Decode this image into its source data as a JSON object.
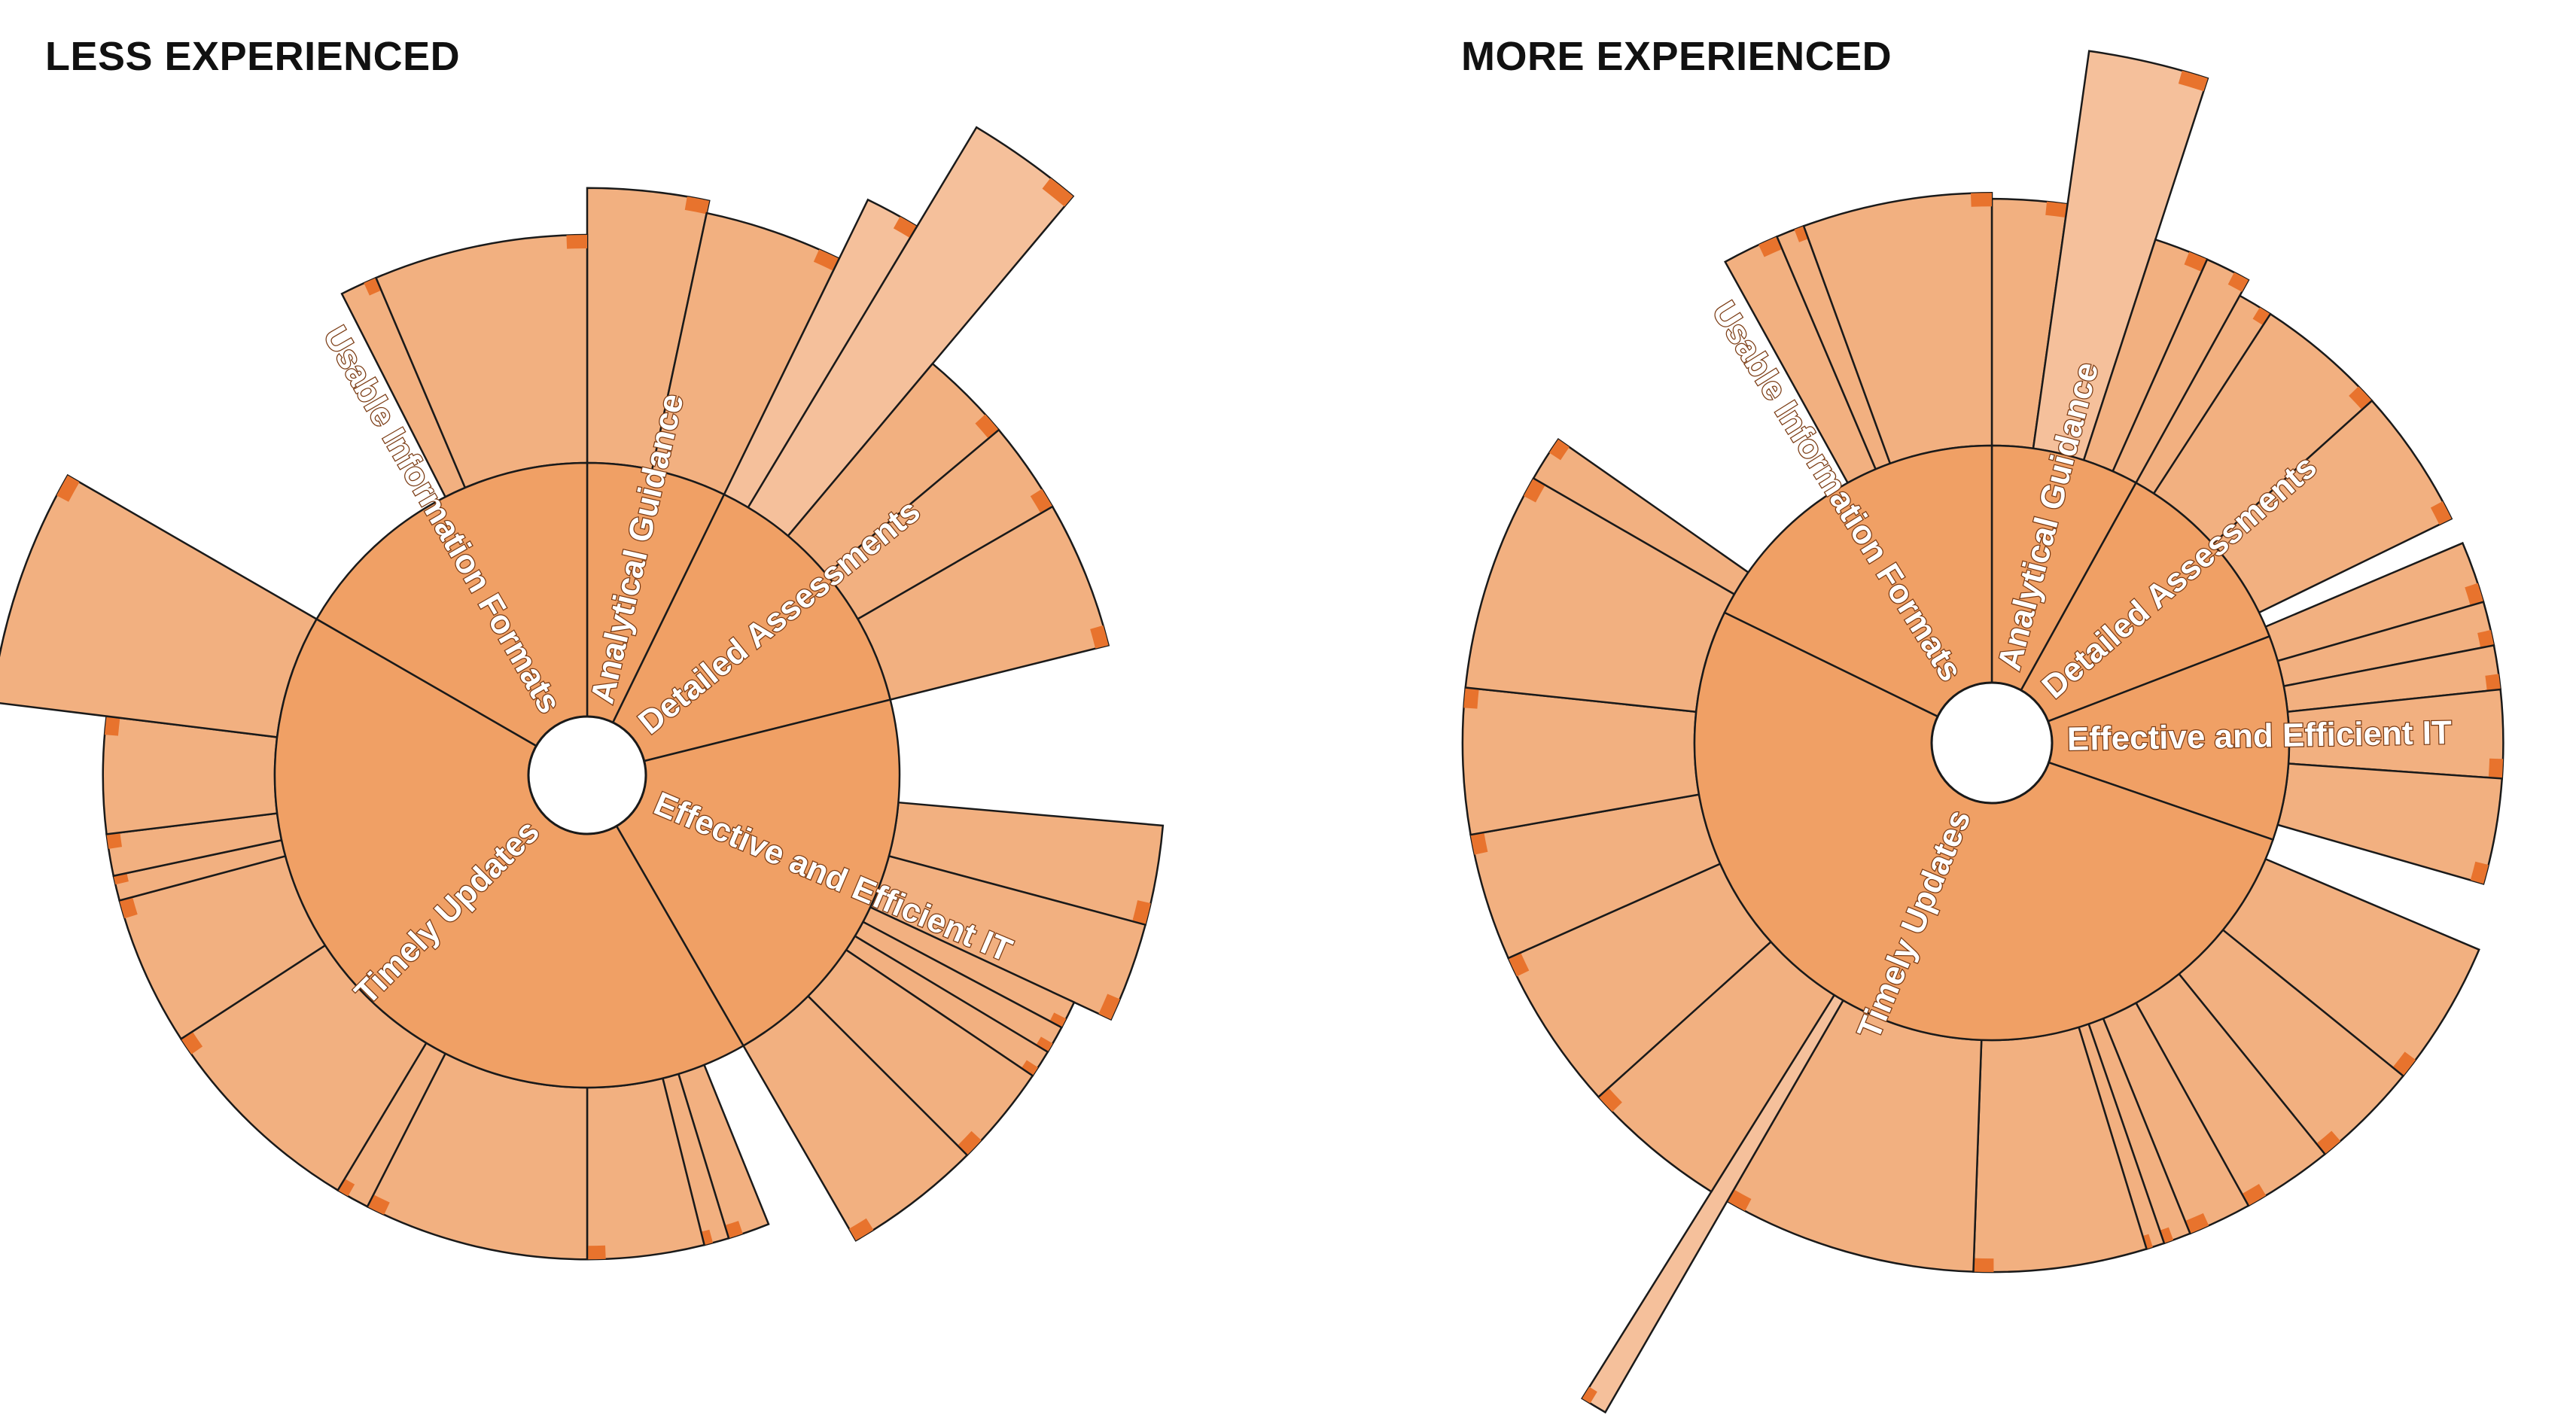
{
  "colors": {
    "inner": "#f0a065",
    "outer": "#f2b080",
    "outer_accent": "#f5c09b",
    "edge": "#1a1a1a",
    "tip": "#e8732d"
  },
  "chart_data": [
    {
      "type": "sunburst",
      "title": "LESS EXPERIENCED",
      "inner_ring": [
        {
          "name": "Analytical Guidance",
          "start": 0,
          "end": 26
        },
        {
          "name": "Detailed Assessments",
          "start": 26,
          "end": 76
        },
        {
          "name": "Effective and Efficient IT",
          "start": 76,
          "end": 150
        },
        {
          "name": "Timely Updates",
          "start": 150,
          "end": 300
        },
        {
          "name": "Usable Information Formats",
          "start": 300,
          "end": 360
        }
      ],
      "outer_ring": [
        {
          "parent": "Analytical Guidance",
          "start": 0,
          "end": 12,
          "level": 1.88
        },
        {
          "parent": "Analytical Guidance",
          "start": 12,
          "end": 26,
          "level": 1.84
        },
        {
          "parent": "Analytical Guidance",
          "start": 26,
          "end": 31,
          "level": 2.05
        },
        {
          "parent": "Detailed Assessments",
          "start": 31,
          "end": 40,
          "level": 2.42
        },
        {
          "parent": "Detailed Assessments",
          "start": 40,
          "end": 50,
          "level": 1.72
        },
        {
          "parent": "Detailed Assessments",
          "start": 50,
          "end": 60,
          "level": 1.72
        },
        {
          "parent": "Detailed Assessments",
          "start": 60,
          "end": 76,
          "level": 1.72
        },
        {
          "parent": "Effective and Efficient IT",
          "start": 95,
          "end": 105,
          "level": 1.85
        },
        {
          "parent": "Effective and Efficient IT",
          "start": 105,
          "end": 115,
          "level": 1.85
        },
        {
          "parent": "Effective and Efficient IT",
          "start": 115,
          "end": 118,
          "level": 1.72
        },
        {
          "parent": "Effective and Efficient IT",
          "start": 118,
          "end": 121,
          "level": 1.72
        },
        {
          "parent": "Effective and Efficient IT",
          "start": 121,
          "end": 124,
          "level": 1.72
        },
        {
          "parent": "Effective and Efficient IT",
          "start": 124,
          "end": 135,
          "level": 1.72
        },
        {
          "parent": "Effective and Efficient IT",
          "start": 135,
          "end": 150,
          "level": 1.72
        },
        {
          "parent": "Timely Updates",
          "start": 158,
          "end": 163,
          "level": 1.55
        },
        {
          "parent": "Timely Updates",
          "start": 163,
          "end": 166,
          "level": 1.55
        },
        {
          "parent": "Timely Updates",
          "start": 166,
          "end": 180,
          "level": 1.55
        },
        {
          "parent": "Timely Updates",
          "start": 180,
          "end": 207,
          "level": 1.55
        },
        {
          "parent": "Timely Updates",
          "start": 207,
          "end": 211,
          "level": 1.55
        },
        {
          "parent": "Timely Updates",
          "start": 211,
          "end": 237,
          "level": 1.55
        },
        {
          "parent": "Timely Updates",
          "start": 237,
          "end": 255,
          "level": 1.55
        },
        {
          "parent": "Timely Updates",
          "start": 255,
          "end": 258,
          "level": 1.55
        },
        {
          "parent": "Timely Updates",
          "start": 258,
          "end": 263,
          "level": 1.55
        },
        {
          "parent": "Timely Updates",
          "start": 263,
          "end": 277,
          "level": 1.55
        },
        {
          "parent": "Timely Updates",
          "start": 277,
          "end": 300,
          "level": 1.92
        },
        {
          "parent": "Usable Information Formats",
          "start": 333,
          "end": 337,
          "level": 1.73
        },
        {
          "parent": "Usable Information Formats",
          "start": 337,
          "end": 360,
          "level": 1.73
        }
      ]
    },
    {
      "type": "sunburst",
      "title": "MORE EXPERIENCED",
      "inner_ring": [
        {
          "name": "Analytical Guidance",
          "start": 0,
          "end": 29
        },
        {
          "name": "Detailed Assessments",
          "start": 29,
          "end": 69
        },
        {
          "name": "Effective and Efficient IT",
          "start": 69,
          "end": 109
        },
        {
          "name": "Timely Updates",
          "start": 109,
          "end": 296
        },
        {
          "name": "Usable Information Formats",
          "start": 296,
          "end": 360
        }
      ],
      "outer_ring": [
        {
          "parent": "Analytical Guidance",
          "start": 0,
          "end": 8,
          "level": 1.83
        },
        {
          "parent": "Analytical Guidance",
          "start": 8,
          "end": 18,
          "level": 2.35
        },
        {
          "parent": "Analytical Guidance",
          "start": 18,
          "end": 24,
          "level": 1.78
        },
        {
          "parent": "Analytical Guidance",
          "start": 24,
          "end": 29,
          "level": 1.78
        },
        {
          "parent": "Detailed Assessments",
          "start": 29,
          "end": 33,
          "level": 1.72
        },
        {
          "parent": "Detailed Assessments",
          "start": 33,
          "end": 48,
          "level": 1.72
        },
        {
          "parent": "Detailed Assessments",
          "start": 48,
          "end": 64,
          "level": 1.72
        },
        {
          "parent": "Effective and Efficient IT",
          "start": 67,
          "end": 74,
          "level": 1.72
        },
        {
          "parent": "Effective and Efficient IT",
          "start": 74,
          "end": 79,
          "level": 1.72
        },
        {
          "parent": "Effective and Efficient IT",
          "start": 79,
          "end": 84,
          "level": 1.72
        },
        {
          "parent": "Effective and Efficient IT",
          "start": 84,
          "end": 94,
          "level": 1.72
        },
        {
          "parent": "Effective and Efficient IT",
          "start": 94,
          "end": 106,
          "level": 1.72
        },
        {
          "parent": "Timely Updates",
          "start": 113,
          "end": 129,
          "level": 1.78
        },
        {
          "parent": "Timely Updates",
          "start": 129,
          "end": 141,
          "level": 1.78
        },
        {
          "parent": "Timely Updates",
          "start": 141,
          "end": 151,
          "level": 1.78
        },
        {
          "parent": "Timely Updates",
          "start": 151,
          "end": 158,
          "level": 1.78
        },
        {
          "parent": "Timely Updates",
          "start": 158,
          "end": 161,
          "level": 1.78
        },
        {
          "parent": "Timely Updates",
          "start": 161,
          "end": 163,
          "level": 1.78
        },
        {
          "parent": "Timely Updates",
          "start": 163,
          "end": 182,
          "level": 1.78
        },
        {
          "parent": "Timely Updates",
          "start": 182,
          "end": 210,
          "level": 1.78
        },
        {
          "parent": "Timely Updates",
          "start": 210,
          "end": 212,
          "level": 2.6
        },
        {
          "parent": "Timely Updates",
          "start": 212,
          "end": 228,
          "level": 1.78
        },
        {
          "parent": "Timely Updates",
          "start": 228,
          "end": 246,
          "level": 1.78
        },
        {
          "parent": "Timely Updates",
          "start": 246,
          "end": 260,
          "level": 1.78
        },
        {
          "parent": "Timely Updates",
          "start": 260,
          "end": 276,
          "level": 1.78
        },
        {
          "parent": "Timely Updates",
          "start": 276,
          "end": 300,
          "level": 1.78
        },
        {
          "parent": "Timely Updates",
          "start": 300,
          "end": 305,
          "level": 1.78
        },
        {
          "parent": "Usable Information Formats",
          "start": 331,
          "end": 337,
          "level": 1.85
        },
        {
          "parent": "Usable Information Formats",
          "start": 337,
          "end": 340,
          "level": 1.85
        },
        {
          "parent": "Usable Information Formats",
          "start": 340,
          "end": 360,
          "level": 1.85
        }
      ]
    }
  ]
}
